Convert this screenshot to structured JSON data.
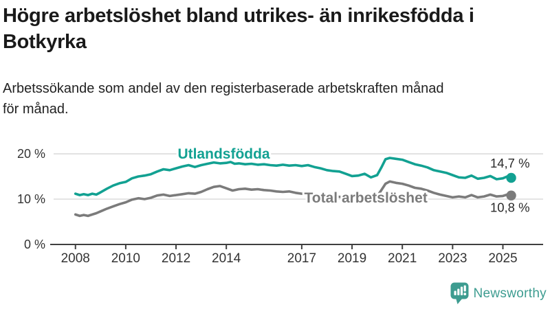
{
  "page": {
    "title": "Högre arbetslöshet bland utrikes- än inrikesfödda i Botkyrka",
    "subtitle": "Arbetssökande som andel av den registerbaserade arbetskraften månad\nför månad."
  },
  "branding": {
    "logo_text": "Newsworthy",
    "logo_icon": "bar-chart-speech-bubble-icon",
    "logo_color": "#3d9c90"
  },
  "colors": {
    "background": "#ffffff",
    "title_text": "#1a1a1a",
    "subtitle_text": "#222222",
    "axis_line": "#3f3f3f",
    "tick_text": "#333333",
    "gridline": "#dcdcdc",
    "end_label_text": "#2b2b2b",
    "series_foreign_born": "#12a192",
    "series_total": "#7b7b7b"
  },
  "chart_data": {
    "type": "line",
    "title": "Högre arbetslöshet bland utrikes- än inrikesfödda i Botkyrka",
    "subtitle": "Arbetssökande som andel av den registerbaserade arbetskraften månad för månad.",
    "xlabel": "",
    "ylabel": "",
    "x_unit": "year",
    "xlim": [
      2007.05,
      2026.6
    ],
    "ylim": [
      0,
      23.64
    ],
    "grid": "horizontal",
    "legend_position": "inline-labels",
    "yticks": [
      {
        "value": 0,
        "label": "0 %"
      },
      {
        "value": 10,
        "label": "10 %"
      },
      {
        "value": 20,
        "label": "20 %"
      }
    ],
    "xticks": [
      {
        "value": 2008,
        "label": "2008"
      },
      {
        "value": 2010,
        "label": "2010"
      },
      {
        "value": 2012,
        "label": "2012"
      },
      {
        "value": 2014,
        "label": "2014"
      },
      {
        "value": 2017,
        "label": "2017"
      },
      {
        "value": 2019,
        "label": "2019"
      },
      {
        "value": 2021,
        "label": "2021"
      },
      {
        "value": 2023,
        "label": "2023"
      },
      {
        "value": 2025,
        "label": "2025"
      }
    ],
    "series": [
      {
        "name": "Utlandsfödda",
        "color": "#12a192",
        "end_label": "14,7 %",
        "end_value": 14.7,
        "label_pos": {
          "x": 2013.9,
          "y": 20.0
        },
        "points": [
          [
            2008.0,
            11.2
          ],
          [
            2008.17,
            10.9
          ],
          [
            2008.33,
            11.1
          ],
          [
            2008.5,
            10.9
          ],
          [
            2008.67,
            11.2
          ],
          [
            2008.83,
            11.0
          ],
          [
            2009.0,
            11.5
          ],
          [
            2009.25,
            12.3
          ],
          [
            2009.5,
            13.0
          ],
          [
            2009.75,
            13.5
          ],
          [
            2010.0,
            13.8
          ],
          [
            2010.25,
            14.6
          ],
          [
            2010.5,
            15.0
          ],
          [
            2010.75,
            15.2
          ],
          [
            2011.0,
            15.5
          ],
          [
            2011.25,
            16.1
          ],
          [
            2011.5,
            16.6
          ],
          [
            2011.75,
            16.4
          ],
          [
            2012.0,
            16.8
          ],
          [
            2012.25,
            17.2
          ],
          [
            2012.5,
            17.5
          ],
          [
            2012.75,
            17.1
          ],
          [
            2013.0,
            17.5
          ],
          [
            2013.25,
            17.8
          ],
          [
            2013.5,
            18.1
          ],
          [
            2013.75,
            17.9
          ],
          [
            2014.0,
            18.0
          ],
          [
            2014.17,
            18.2
          ],
          [
            2014.33,
            17.8
          ],
          [
            2014.5,
            17.9
          ],
          [
            2014.75,
            17.7
          ],
          [
            2015.0,
            17.8
          ],
          [
            2015.25,
            17.6
          ],
          [
            2015.5,
            17.7
          ],
          [
            2015.75,
            17.5
          ],
          [
            2016.0,
            17.4
          ],
          [
            2016.25,
            17.6
          ],
          [
            2016.5,
            17.4
          ],
          [
            2016.75,
            17.5
          ],
          [
            2017.0,
            17.3
          ],
          [
            2017.25,
            17.5
          ],
          [
            2017.5,
            17.1
          ],
          [
            2017.75,
            16.8
          ],
          [
            2018.0,
            16.4
          ],
          [
            2018.25,
            16.2
          ],
          [
            2018.5,
            16.1
          ],
          [
            2018.75,
            15.6
          ],
          [
            2019.0,
            15.1
          ],
          [
            2019.25,
            15.2
          ],
          [
            2019.5,
            15.6
          ],
          [
            2019.75,
            14.8
          ],
          [
            2020.0,
            15.3
          ],
          [
            2020.17,
            17.0
          ],
          [
            2020.33,
            18.8
          ],
          [
            2020.5,
            19.1
          ],
          [
            2020.75,
            18.9
          ],
          [
            2021.0,
            18.7
          ],
          [
            2021.25,
            18.2
          ],
          [
            2021.5,
            17.7
          ],
          [
            2021.75,
            17.4
          ],
          [
            2022.0,
            17.0
          ],
          [
            2022.25,
            16.4
          ],
          [
            2022.5,
            16.1
          ],
          [
            2022.75,
            15.8
          ],
          [
            2023.0,
            15.3
          ],
          [
            2023.25,
            14.8
          ],
          [
            2023.5,
            14.7
          ],
          [
            2023.75,
            15.2
          ],
          [
            2024.0,
            14.5
          ],
          [
            2024.25,
            14.7
          ],
          [
            2024.5,
            15.1
          ],
          [
            2024.75,
            14.4
          ],
          [
            2025.0,
            14.6
          ],
          [
            2025.17,
            15.0
          ],
          [
            2025.33,
            14.7
          ]
        ]
      },
      {
        "name": "Total arbetslöshet",
        "color": "#7b7b7b",
        "end_label": "10,8 %",
        "end_value": 10.8,
        "label_pos": {
          "x": 2019.55,
          "y": 10.3
        },
        "points": [
          [
            2008.0,
            6.6
          ],
          [
            2008.17,
            6.3
          ],
          [
            2008.33,
            6.5
          ],
          [
            2008.5,
            6.3
          ],
          [
            2008.67,
            6.6
          ],
          [
            2008.83,
            6.9
          ],
          [
            2009.0,
            7.3
          ],
          [
            2009.25,
            7.9
          ],
          [
            2009.5,
            8.4
          ],
          [
            2009.75,
            8.9
          ],
          [
            2010.0,
            9.3
          ],
          [
            2010.25,
            9.9
          ],
          [
            2010.5,
            10.2
          ],
          [
            2010.75,
            10.0
          ],
          [
            2011.0,
            10.3
          ],
          [
            2011.25,
            10.8
          ],
          [
            2011.5,
            11.0
          ],
          [
            2011.75,
            10.7
          ],
          [
            2012.0,
            10.9
          ],
          [
            2012.25,
            11.1
          ],
          [
            2012.5,
            11.3
          ],
          [
            2012.75,
            11.2
          ],
          [
            2013.0,
            11.6
          ],
          [
            2013.25,
            12.2
          ],
          [
            2013.5,
            12.7
          ],
          [
            2013.75,
            12.9
          ],
          [
            2014.0,
            12.4
          ],
          [
            2014.25,
            11.9
          ],
          [
            2014.5,
            12.2
          ],
          [
            2014.75,
            12.3
          ],
          [
            2015.0,
            12.1
          ],
          [
            2015.25,
            12.2
          ],
          [
            2015.5,
            12.0
          ],
          [
            2015.75,
            11.9
          ],
          [
            2016.0,
            11.7
          ],
          [
            2016.25,
            11.6
          ],
          [
            2016.5,
            11.7
          ],
          [
            2016.75,
            11.4
          ],
          [
            2017.0,
            11.2
          ],
          [
            2017.25,
            11.1
          ],
          [
            2017.5,
            11.0
          ],
          [
            2017.75,
            10.9
          ],
          [
            2018.0,
            10.8
          ],
          [
            2018.25,
            10.6
          ],
          [
            2018.5,
            10.5
          ],
          [
            2018.75,
            10.4
          ],
          [
            2019.0,
            10.4
          ],
          [
            2019.25,
            10.3
          ],
          [
            2019.5,
            10.4
          ],
          [
            2019.75,
            10.3
          ],
          [
            2020.0,
            10.6
          ],
          [
            2020.17,
            12.0
          ],
          [
            2020.33,
            13.4
          ],
          [
            2020.5,
            13.9
          ],
          [
            2020.75,
            13.6
          ],
          [
            2021.0,
            13.4
          ],
          [
            2021.25,
            13.0
          ],
          [
            2021.5,
            12.5
          ],
          [
            2021.75,
            12.3
          ],
          [
            2022.0,
            11.9
          ],
          [
            2022.25,
            11.4
          ],
          [
            2022.5,
            11.0
          ],
          [
            2022.75,
            10.7
          ],
          [
            2023.0,
            10.4
          ],
          [
            2023.25,
            10.6
          ],
          [
            2023.5,
            10.4
          ],
          [
            2023.75,
            10.9
          ],
          [
            2024.0,
            10.4
          ],
          [
            2024.25,
            10.6
          ],
          [
            2024.5,
            11.0
          ],
          [
            2024.75,
            10.6
          ],
          [
            2025.0,
            10.7
          ],
          [
            2025.17,
            11.0
          ],
          [
            2025.33,
            10.8
          ]
        ]
      }
    ]
  }
}
